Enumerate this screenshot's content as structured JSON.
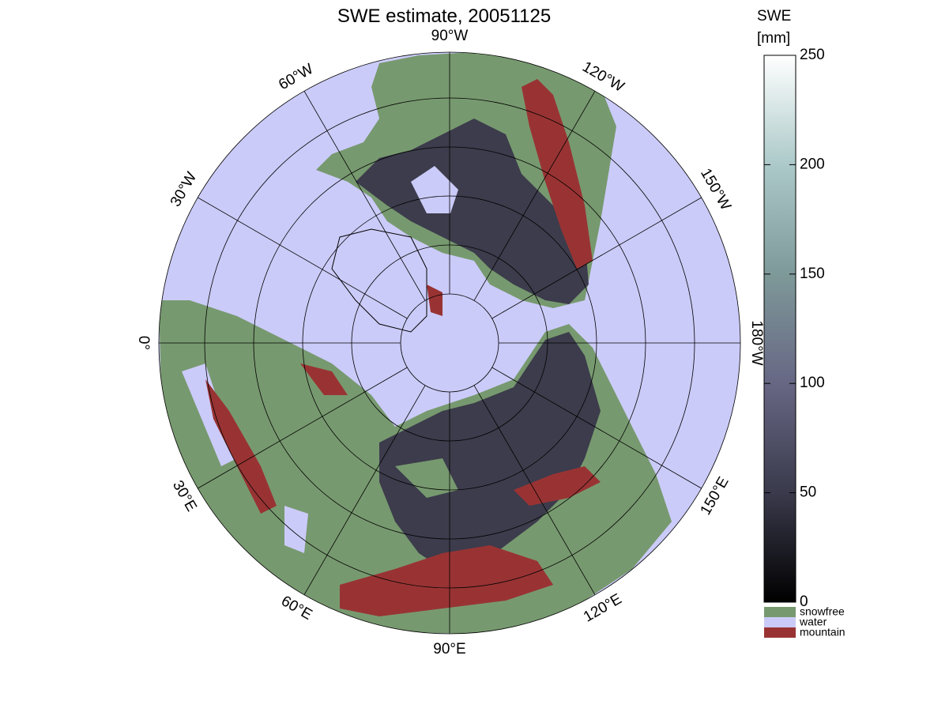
{
  "title": "SWE estimate, 20051125",
  "map": {
    "land_color": "#77996f",
    "water_color": "#cbcbf9",
    "mountain_color": "#993333",
    "snow_color": "#3c3c4c",
    "meridians": [
      {
        "value": 0,
        "label": "0°"
      },
      {
        "value": 30,
        "label": "30°E"
      },
      {
        "value": 60,
        "label": "60°E"
      },
      {
        "value": 90,
        "label": "90°E"
      },
      {
        "value": 120,
        "label": "120°E"
      },
      {
        "value": 150,
        "label": "150°E"
      },
      {
        "value": 180,
        "label": "180°W"
      },
      {
        "value": -150,
        "label": "150°W"
      },
      {
        "value": -120,
        "label": "120°W"
      },
      {
        "value": -90,
        "label": "90°W"
      },
      {
        "value": -60,
        "label": "60°W"
      },
      {
        "value": -30,
        "label": "30°W"
      }
    ]
  },
  "colorbar": {
    "label": [
      "SWE",
      "[mm]"
    ],
    "lim": [
      0,
      250
    ],
    "ticks": [
      0,
      50,
      100,
      150,
      200,
      250
    ],
    "colormap": [
      "#000000",
      "#3a3a4c",
      "#676784",
      "#7e9999",
      "#acc9c9",
      "#ffffff"
    ]
  },
  "legend": [
    {
      "name": "snowfree",
      "color": "#77996f"
    },
    {
      "name": "water",
      "color": "#cbcbf9"
    },
    {
      "name": "mountain",
      "color": "#993333"
    }
  ]
}
